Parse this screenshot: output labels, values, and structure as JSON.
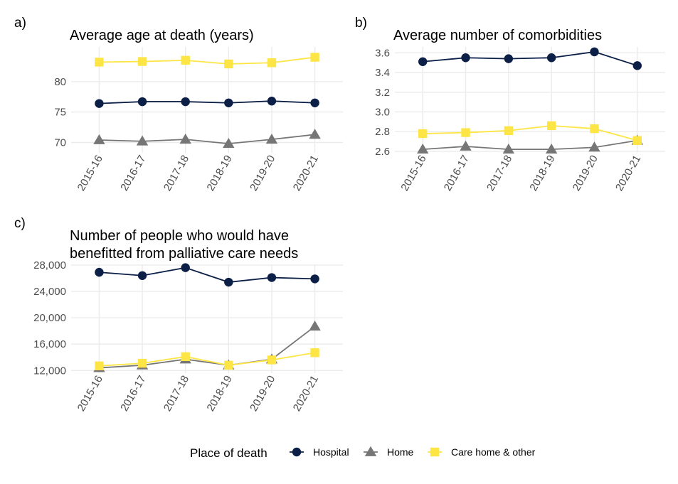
{
  "chart_data": [
    {
      "panel": "a)",
      "type": "line",
      "title": "Average age at death (years)",
      "xlabel": "",
      "ylabel": "",
      "categories": [
        "2015-16",
        "2016-17",
        "2017-18",
        "2018-19",
        "2019-20",
        "2020-21"
      ],
      "ylim": [
        68.3,
        85.7
      ],
      "yticks": [
        70,
        75,
        80
      ],
      "ytick_labels": [
        "70",
        "75",
        "80"
      ],
      "grid": true,
      "series": [
        {
          "name": "Hospital",
          "values": [
            76.4,
            76.7,
            76.7,
            76.5,
            76.8,
            76.5
          ]
        },
        {
          "name": "Home",
          "values": [
            70.4,
            70.2,
            70.5,
            69.8,
            70.5,
            71.3
          ]
        },
        {
          "name": "Care home & other",
          "values": [
            83.2,
            83.3,
            83.5,
            82.9,
            83.1,
            84.0
          ]
        }
      ]
    },
    {
      "panel": "b)",
      "type": "line",
      "title": "Average number of comorbidities",
      "xlabel": "",
      "ylabel": "",
      "categories": [
        "2015-16",
        "2016-17",
        "2017-18",
        "2018-19",
        "2019-20",
        "2020-21"
      ],
      "ylim": [
        2.585,
        3.66
      ],
      "yticks": [
        2.6,
        2.8,
        3.0,
        3.2,
        3.4,
        3.6
      ],
      "ytick_labels": [
        "2.6",
        "2.8",
        "3.0",
        "3.2",
        "3.4",
        "3.6"
      ],
      "grid": true,
      "series": [
        {
          "name": "Hospital",
          "values": [
            3.51,
            3.55,
            3.54,
            3.55,
            3.61,
            3.47
          ]
        },
        {
          "name": "Home",
          "values": [
            2.62,
            2.65,
            2.62,
            2.62,
            2.64,
            2.71
          ]
        },
        {
          "name": "Care home & other",
          "values": [
            2.78,
            2.79,
            2.81,
            2.86,
            2.83,
            2.71
          ]
        }
      ]
    },
    {
      "panel": "c)",
      "type": "line",
      "title": "Number of people who would have benefitted from palliative care needs",
      "title_lines": [
        "Number of people who would have",
        "benefitted from palliative care needs"
      ],
      "xlabel": "",
      "ylabel": "",
      "categories": [
        "2015-16",
        "2016-17",
        "2017-18",
        "2018-19",
        "2019-20",
        "2020-21"
      ],
      "ylim": [
        11600,
        28100
      ],
      "yticks": [
        12000,
        16000,
        20000,
        24000,
        28000
      ],
      "ytick_labels": [
        "12,000",
        "16,000",
        "20,000",
        "24,000",
        "28,000"
      ],
      "grid": true,
      "series": [
        {
          "name": "Hospital",
          "values": [
            26900,
            26400,
            27600,
            25400,
            26100,
            25900
          ]
        },
        {
          "name": "Home",
          "values": [
            12400,
            12800,
            13700,
            12800,
            13700,
            18700
          ]
        },
        {
          "name": "Care home & other",
          "values": [
            12700,
            13100,
            14100,
            12800,
            13600,
            14700
          ]
        }
      ]
    }
  ],
  "legend": {
    "title": "Place of death",
    "position": "bottom",
    "items": [
      {
        "label": "Hospital",
        "color": "#0b1f47",
        "shape": "circle"
      },
      {
        "label": "Home",
        "color": "#767676",
        "shape": "triangle"
      },
      {
        "label": "Care home & other",
        "color": "#fde545",
        "shape": "square"
      }
    ]
  }
}
